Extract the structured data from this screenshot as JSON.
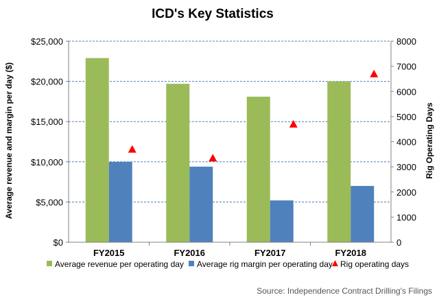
{
  "chart_data": {
    "type": "bar",
    "title": "ICD's Key Statistics",
    "categories": [
      "FY2015",
      "FY2016",
      "FY2017",
      "FY2018"
    ],
    "ylabel": "Average revenue and margin per day ($)",
    "y2label": "Rig Operating Days",
    "ylim": [
      0,
      25000
    ],
    "y2lim": [
      0,
      8000
    ],
    "yticks": [
      "$0",
      "$5,000",
      "$10,000",
      "$15,000",
      "$20,000",
      "$25,000"
    ],
    "y2ticks": [
      "0",
      "1000",
      "2000",
      "3000",
      "4000",
      "5000",
      "6000",
      "7000",
      "8000"
    ],
    "series": [
      {
        "name": "Average revenue per operating day",
        "type": "bar",
        "axis": "left",
        "color": "#9BBB59",
        "values": [
          22900,
          19700,
          18100,
          20000
        ]
      },
      {
        "name": "Average rig margin per operating day",
        "type": "bar",
        "axis": "left",
        "color": "#4F81BD",
        "values": [
          10000,
          9400,
          5200,
          7000
        ]
      },
      {
        "name": "Rig operating days",
        "type": "marker",
        "marker": "triangle",
        "axis": "right",
        "color": "#FF0000",
        "values": [
          3700,
          3350,
          4700,
          6700
        ]
      }
    ],
    "grid": true,
    "legend_position": "bottom",
    "source": "Source: Independence Contract Drilling's Filings"
  }
}
